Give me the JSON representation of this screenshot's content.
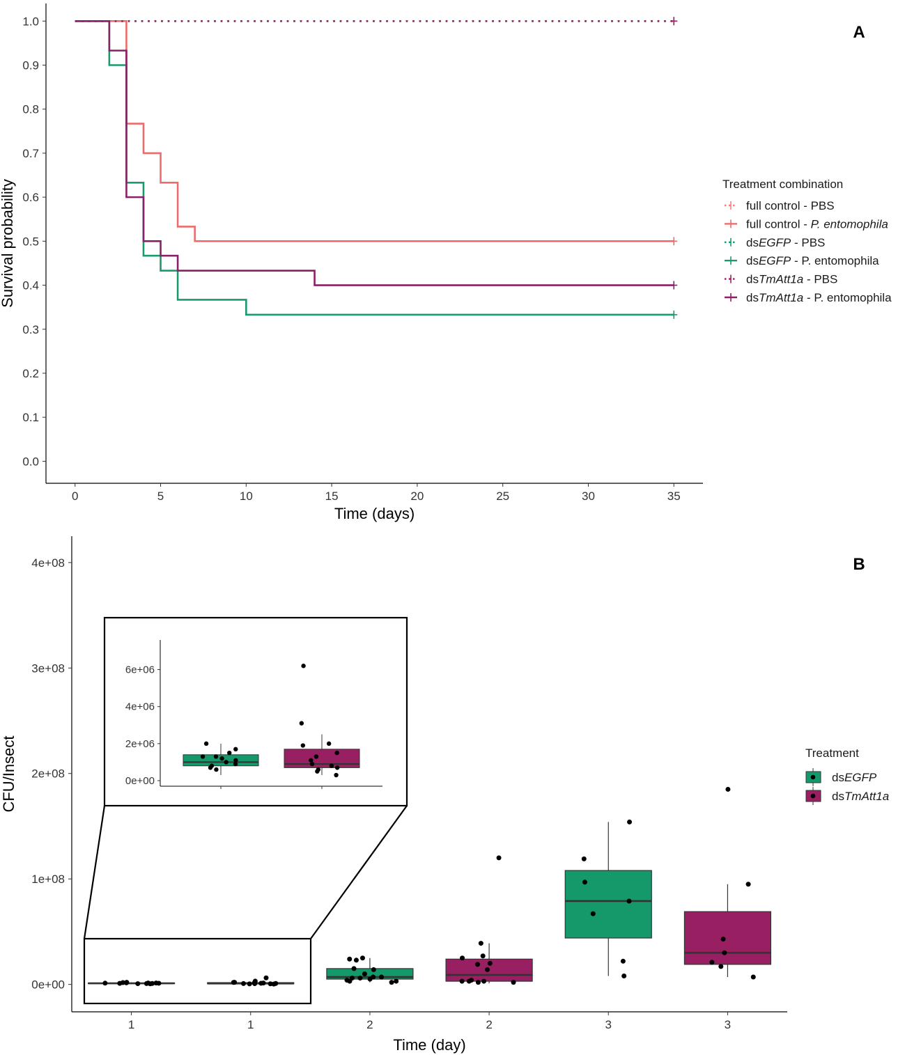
{
  "chart_data": [
    {
      "panel": "A",
      "type": "line",
      "step": true,
      "xlabel": "Time (days)",
      "ylabel": "Survival probability",
      "xlim": [
        -1.7,
        36.7
      ],
      "ylim": [
        -0.05,
        1.04
      ],
      "xticks": [
        0,
        5,
        10,
        15,
        20,
        25,
        30,
        35
      ],
      "yticks": [
        0.0,
        0.1,
        0.2,
        0.3,
        0.4,
        0.5,
        0.6,
        0.7,
        0.8,
        0.9,
        1.0
      ],
      "ytick_labels": [
        "0.0",
        "0.1",
        "0.2",
        "0.3",
        "0.4",
        "0.5",
        "0.6",
        "0.7",
        "0.8",
        "0.9",
        "1.0"
      ],
      "legend": {
        "title": "Treatment combination",
        "position": "right",
        "entries": [
          {
            "pre": "full control - PBS",
            "ital": "",
            "post": ""
          },
          {
            "pre": "full control - ",
            "ital": "P. entomophila",
            "post": ""
          },
          {
            "pre": "ds",
            "ital": "EGFP",
            "post": " - PBS"
          },
          {
            "pre": "ds",
            "ital": "EGFP",
            "post": " - P. entomophila"
          },
          {
            "pre": "ds",
            "ital": "TmAtt1a",
            "post": " - PBS"
          },
          {
            "pre": "ds",
            "ital": "TmAtt1a",
            "post": " - P. entomophila"
          }
        ]
      },
      "series": [
        {
          "name": "full control - PBS",
          "color": "#f4827c",
          "dashed": true,
          "x": [
            0,
            35
          ],
          "y": [
            1.0,
            1.0
          ],
          "censor_x": [
            35
          ]
        },
        {
          "name": "full control - P. entomophila",
          "color": "#ec6c6c",
          "dashed": false,
          "x": [
            0,
            3,
            4,
            5,
            6,
            7,
            35
          ],
          "y": [
            1.0,
            0.767,
            0.7,
            0.633,
            0.533,
            0.5,
            0.5
          ],
          "censor_x": [
            35
          ]
        },
        {
          "name": "dsEGFP - PBS",
          "color": "#1a9b6c",
          "dashed": true,
          "x": [
            0,
            35
          ],
          "y": [
            1.0,
            1.0
          ],
          "censor_x": []
        },
        {
          "name": "dsEGFP - P. entomophila",
          "color": "#1a9b6c",
          "dashed": false,
          "x": [
            0,
            2,
            3,
            4,
            5,
            6,
            10,
            35
          ],
          "y": [
            1.0,
            0.9,
            0.633,
            0.467,
            0.433,
            0.367,
            0.333,
            0.333
          ],
          "censor_x": [
            35
          ]
        },
        {
          "name": "dsTmAtt1a - PBS",
          "color": "#9b1f65",
          "dashed": true,
          "x": [
            0,
            35
          ],
          "y": [
            1.0,
            1.0
          ],
          "censor_x": [
            35
          ]
        },
        {
          "name": "dsTmAtt1a - P. entomophila",
          "color": "#8a1f6a",
          "dashed": false,
          "x": [
            0,
            2,
            3,
            4,
            5,
            6,
            14,
            35
          ],
          "y": [
            1.0,
            0.933,
            0.6,
            0.5,
            0.467,
            0.433,
            0.4,
            0.4
          ],
          "censor_x": [
            35
          ]
        }
      ]
    },
    {
      "panel": "B",
      "type": "box",
      "xlabel": "Time (day)",
      "ylabel": "CFU/Insect",
      "categories": [
        "1",
        "1",
        "2",
        "2",
        "3",
        "3"
      ],
      "ylim": [
        -26000000.0,
        425000000.0
      ],
      "yticks": [
        0,
        100000000,
        200000000,
        300000000,
        400000000
      ],
      "ytick_labels": [
        "0e+00",
        "1e+08",
        "2e+08",
        "3e+08",
        "4e+08"
      ],
      "legend": {
        "title": "Treatment",
        "position": "right",
        "entries": [
          {
            "pre": "ds",
            "ital": "EGFP",
            "post": ""
          },
          {
            "pre": "ds",
            "ital": "TmAtt1a",
            "post": ""
          }
        ]
      },
      "groups": [
        {
          "category": "1",
          "treatment": "dsEGFP",
          "color": "#16996a",
          "q1": 800000,
          "median": 1000000,
          "q3": 1400000,
          "wlo": 300000,
          "whi": 2000000,
          "points": [
            900000,
            1100000,
            1500000,
            800000,
            1300000,
            1700000,
            1000000,
            600000,
            1200000,
            2000000,
            700000,
            1300000
          ]
        },
        {
          "category": "1",
          "treatment": "dsTmAtt1a",
          "color": "#981f62",
          "q1": 700000,
          "median": 900000,
          "q3": 1700000,
          "wlo": 300000,
          "whi": 2500000,
          "points": [
            6200000,
            3100000,
            1900000,
            1500000,
            2000000,
            1300000,
            800000,
            600000,
            900000,
            500000,
            1100000,
            700000,
            300000
          ]
        },
        {
          "category": "2",
          "treatment": "dsEGFP",
          "color": "#16996a",
          "q1": 5000000,
          "median": 7000000,
          "q3": 15000000,
          "wlo": 2000000,
          "whi": 25000000,
          "points": [
            24000000,
            25000000,
            23000000,
            14000000,
            15000000,
            10000000,
            7000000,
            5000000,
            6000000,
            3000000,
            2000000,
            6000000,
            7000000,
            4000000,
            3000000
          ]
        },
        {
          "category": "2",
          "treatment": "dsTmAtt1a",
          "color": "#981f62",
          "q1": 3000000,
          "median": 9000000,
          "q3": 24000000,
          "wlo": 1000000,
          "whi": 39000000,
          "points": [
            120000000,
            39000000,
            27000000,
            25000000,
            20000000,
            19000000,
            14000000,
            4000000,
            3000000,
            2000000,
            3000000,
            3000000,
            2000000
          ]
        },
        {
          "category": "3",
          "treatment": "dsEGFP",
          "color": "#16996a",
          "q1": 44000000,
          "median": 79000000,
          "q3": 108000000,
          "wlo": 8000000,
          "whi": 154000000,
          "points": [
            154000000,
            119000000,
            97000000,
            79000000,
            67000000,
            22000000,
            8000000
          ]
        },
        {
          "category": "3",
          "treatment": "dsTmAtt1a",
          "color": "#981f62",
          "q1": 19000000,
          "median": 30000000,
          "q3": 69000000,
          "wlo": 7000000,
          "whi": 95000000,
          "points": [
            185000000,
            95000000,
            43000000,
            30000000,
            21000000,
            17000000,
            7000000
          ]
        }
      ],
      "inset": {
        "ylim": [
          -300000,
          7600000
        ],
        "yticks": [
          0,
          2000000,
          4000000,
          6000000
        ],
        "ytick_labels": [
          "0e+00",
          "2e+06",
          "4e+06",
          "6e+06"
        ]
      }
    }
  ],
  "panel_labels": {
    "a": "A",
    "b": "B"
  }
}
